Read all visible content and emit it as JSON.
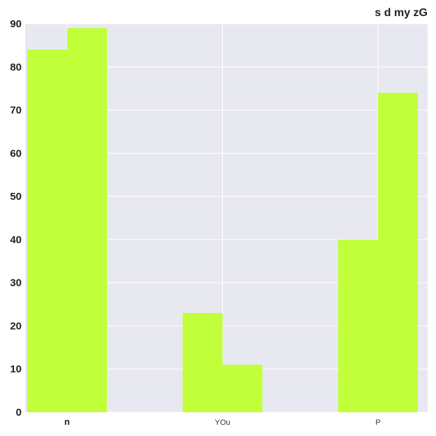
{
  "chart_data": {
    "type": "bar",
    "title": "s d my zG",
    "categories": [
      "n",
      "YOu",
      "P"
    ],
    "series": [
      {
        "values": [
          84,
          23,
          40
        ]
      },
      {
        "values": [
          89,
          11,
          74
        ]
      }
    ],
    "ylim": [
      0,
      90
    ],
    "yticks": [
      "0",
      "10",
      "20",
      "30",
      "40",
      "50",
      "60",
      "70",
      "80",
      "90"
    ],
    "xlabel": "",
    "ylabel": "",
    "grid": true,
    "legend": "none",
    "colors": {
      "bar": "#c0ff3a",
      "plot_background": "#e8e8f0",
      "grid": "#ffffff"
    }
  }
}
